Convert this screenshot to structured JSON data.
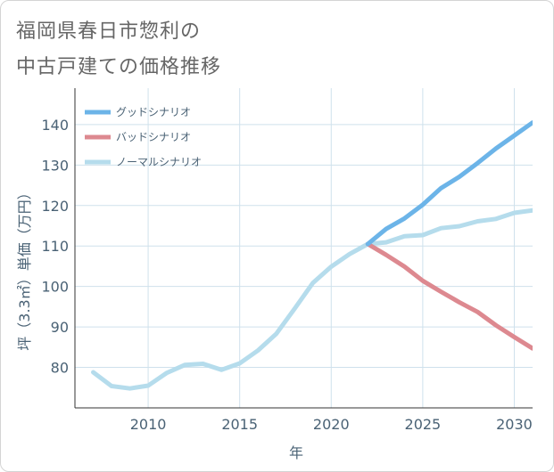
{
  "title_lines": [
    "福岡県春日市惣利の",
    "中古戸建ての価格推移"
  ],
  "chart_data": {
    "type": "line",
    "title": "福岡県春日市惣利の中古戸建ての価格推移",
    "xlabel": "年",
    "ylabel": "坪（3.3㎡）単価（万円）",
    "xlim": [
      2006,
      2031
    ],
    "ylim": [
      70,
      149
    ],
    "xticks": [
      2010,
      2015,
      2020,
      2025,
      2030
    ],
    "yticks": [
      80,
      90,
      100,
      110,
      120,
      130,
      140
    ],
    "grid": true,
    "legend_position": "top-left",
    "series": [
      {
        "name": "グッドシナリオ",
        "color": "#6cb4e8",
        "x": [
          2022,
          2023,
          2024,
          2025,
          2026,
          2027,
          2028,
          2029,
          2030,
          2031
        ],
        "y": [
          110.5,
          114.2,
          116.8,
          120.2,
          124.3,
          127.1,
          130.5,
          134.1,
          137.3,
          140.5
        ]
      },
      {
        "name": "バッドシナリオ",
        "color": "#dd8990",
        "x": [
          2022,
          2023,
          2024,
          2025,
          2026,
          2027,
          2028,
          2029,
          2030,
          2031
        ],
        "y": [
          110.5,
          107.8,
          104.9,
          101.4,
          98.7,
          96.1,
          93.7,
          90.4,
          87.5,
          84.7
        ]
      },
      {
        "name": "ノーマルシナリオ",
        "color": "#b5dcec",
        "x": [
          2007,
          2008,
          2009,
          2010,
          2011,
          2012,
          2013,
          2014,
          2015,
          2016,
          2017,
          2018,
          2019,
          2020,
          2021,
          2022,
          2023,
          2024,
          2025,
          2026,
          2027,
          2028,
          2029,
          2030,
          2031
        ],
        "y": [
          78.8,
          75.4,
          74.8,
          75.5,
          78.6,
          80.6,
          80.9,
          79.4,
          81.0,
          84.2,
          88.3,
          94.5,
          100.9,
          104.9,
          108.0,
          110.5,
          110.9,
          112.4,
          112.7,
          114.4,
          114.9,
          116.1,
          116.7,
          118.2,
          118.8
        ]
      }
    ]
  }
}
